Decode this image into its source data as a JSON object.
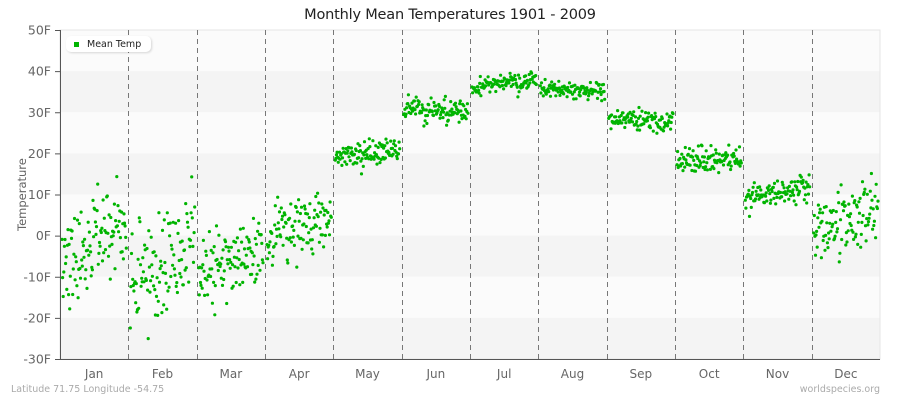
{
  "title": "Monthly Mean Temperatures 1901 - 2009",
  "footer": {
    "location": "Latitude 71.75 Longitude -54.75",
    "source": "worldspecies.org"
  },
  "legend": {
    "label": "Mean Temp",
    "color": "#00b400"
  },
  "chart_data": {
    "type": "scatter",
    "title": "Monthly Mean Temperatures 1901 - 2009",
    "xlabel": "",
    "ylabel": "Temperature",
    "ylim": [
      -30,
      50
    ],
    "yticks": [
      "50F",
      "40F",
      "30F",
      "20F",
      "10F",
      "0F",
      "-10F",
      "-20F",
      "-30F"
    ],
    "ytick_values": [
      50,
      40,
      30,
      20,
      10,
      0,
      -10,
      -20,
      -30
    ],
    "categories": [
      "Jan",
      "Feb",
      "Mar",
      "Apr",
      "May",
      "Jun",
      "Jul",
      "Aug",
      "Sep",
      "Oct",
      "Nov",
      "Dec"
    ],
    "grid": {
      "horizontal_bands": true,
      "vertical_dashed_month_dividers": true
    },
    "legend_position": "top-left inside",
    "series": [
      {
        "name": "Mean Temp",
        "color": "#00b400",
        "points_per_month": 109,
        "years": [
          1901,
          2009
        ],
        "monthly_summary": [
          {
            "month": "Jan",
            "mean": -3,
            "min": -21.5,
            "max": 18,
            "trend": [
              -8,
              2
            ]
          },
          {
            "month": "Feb",
            "mean": -8,
            "min": -29,
            "max": 16,
            "trend": [
              -12,
              -3
            ]
          },
          {
            "month": "Mar",
            "mean": -7,
            "min": -20,
            "max": 10,
            "trend": [
              -9,
              -4
            ]
          },
          {
            "month": "Apr",
            "mean": 3,
            "min": -10.5,
            "max": 14,
            "trend": [
              0,
              5
            ]
          },
          {
            "month": "May",
            "mean": 20,
            "min": 15,
            "max": 26,
            "trend": [
              19,
              21
            ]
          },
          {
            "month": "Jun",
            "mean": 30,
            "min": 26.5,
            "max": 36,
            "trend": [
              31,
              30
            ]
          },
          {
            "month": "Jul",
            "mean": 37,
            "min": 33,
            "max": 41,
            "trend": [
              36,
              38
            ]
          },
          {
            "month": "Aug",
            "mean": 35.5,
            "min": 32,
            "max": 39,
            "trend": [
              36,
              35
            ]
          },
          {
            "month": "Sep",
            "mean": 27.5,
            "min": 24,
            "max": 32,
            "trend": [
              28,
              28
            ]
          },
          {
            "month": "Oct",
            "mean": 18,
            "min": 13,
            "max": 24,
            "trend": [
              18,
              19
            ]
          },
          {
            "month": "Nov",
            "mean": 10,
            "min": 4,
            "max": 16,
            "trend": [
              9,
              11
            ]
          },
          {
            "month": "Dec",
            "mean": 3,
            "min": -12,
            "max": 16.5,
            "trend": [
              1,
              5
            ]
          }
        ]
      }
    ]
  },
  "colors": {
    "point": "#00b400",
    "band_light": "#fbfbfb",
    "band_dark": "#f4f4f4",
    "axis": "#555555",
    "divider": "#777777",
    "tick_text": "#666666"
  }
}
